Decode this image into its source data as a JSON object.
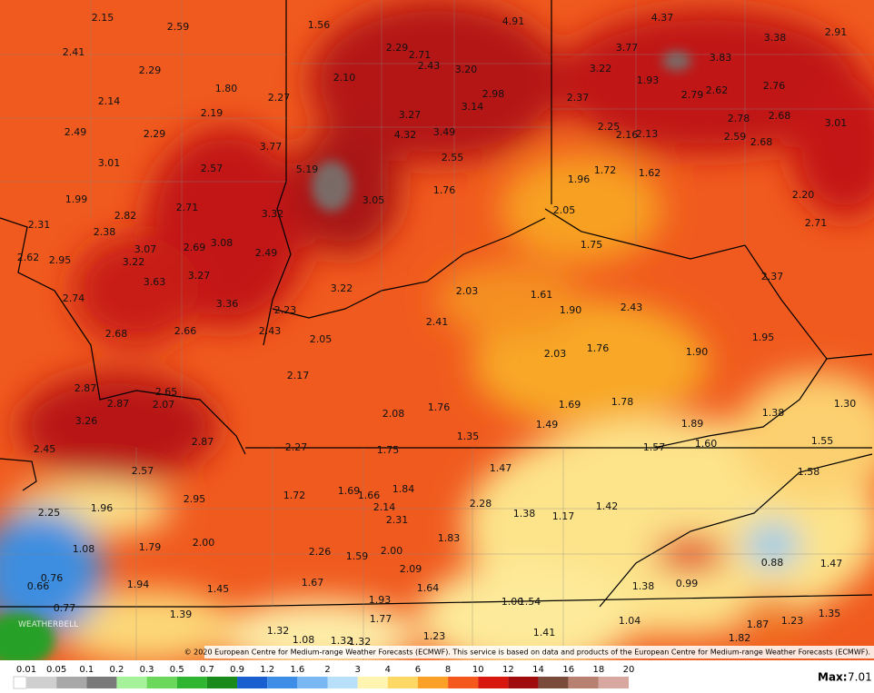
{
  "map": {
    "values": [
      "2.15",
      "2.59",
      "1.56",
      "4.91",
      "4.37",
      "3.38",
      "2.91",
      "2.41",
      "2.29",
      "2.71",
      "2.43",
      "3.20",
      "3.77",
      "3.83",
      "3.22",
      "2.29",
      "2.10",
      "1.93",
      "2.76",
      "1.80",
      "2.98",
      "2.79",
      "2.62",
      "2.14",
      "2.27",
      "2.37",
      "3.14",
      "2.19",
      "3.27",
      "2.78",
      "2.68",
      "3.01",
      "2.49",
      "2.29",
      "4.32",
      "3.49",
      "2.25",
      "2.16",
      "2.13",
      "2.59",
      "2.68",
      "3.77",
      "3.01",
      "2.57",
      "5.19",
      "2.55",
      "1.72",
      "1.62",
      "1.96",
      "1.76",
      "3.05",
      "1.99",
      "2.20",
      "2.71",
      "3.32",
      "2.05",
      "2.82",
      "2.31",
      "2.71",
      "2.38",
      "1.75",
      "3.07",
      "2.69",
      "3.08",
      "2.49",
      "2.62",
      "2.95",
      "3.22",
      "2.37",
      "3.27",
      "3.63",
      "3.22",
      "2.03",
      "1.61",
      "2.74",
      "3.36",
      "1.90",
      "2.43",
      "2.23",
      "2.41",
      "2.68",
      "2.66",
      "2.43",
      "2.05",
      "1.95",
      "1.76",
      "1.90",
      "2.03",
      "2.17",
      "2.87",
      "2.65",
      "2.87",
      "2.07",
      "1.69",
      "1.78",
      "1.30",
      "1.76",
      "2.08",
      "1.38",
      "3.26",
      "1.49",
      "1.89",
      "1.35",
      "2.87",
      "2.27",
      "1.75",
      "1.57",
      "1.60",
      "1.55",
      "2.45",
      "1.47",
      "2.57",
      "1.58",
      "1.72",
      "1.69",
      "1.66",
      "1.84",
      "2.95",
      "2.28",
      "2.14",
      "1.42",
      "1.96",
      "1.38",
      "1.17",
      "2.25",
      "2.31",
      "1.83",
      "2.00",
      "1.79",
      "1.08",
      "2.26",
      "2.00",
      "1.59",
      "0.88",
      "1.47",
      "2.09",
      "0.76",
      "1.94",
      "1.67",
      "1.38",
      "0.99",
      "0.66",
      "1.45",
      "1.64",
      "1.93",
      "1.00",
      "1.54",
      "0.77",
      "1.39",
      "1.04",
      "1.23",
      "1.35",
      "1.77",
      "1.87",
      "1.32",
      "1.41",
      "1.23",
      "1.08",
      "1.32",
      "1.32",
      "1.82"
    ],
    "copyright": "© 2020 European Centre for Medium-range Weather Forecasts (ECMWF). This service is based on data and products of the European Centre for Medium-range Weather Forecasts (ECMWF).",
    "logo": "WEATHERBELL"
  },
  "legend": {
    "ticks": [
      "0.01",
      "0.05",
      "0.1",
      "0.2",
      "0.3",
      "0.5",
      "0.7",
      "0.9",
      "1.2",
      "1.6",
      "2",
      "3",
      "4",
      "6",
      "8",
      "10",
      "12",
      "14",
      "16",
      "18",
      "20"
    ],
    "max_label": "Max:",
    "max_value": "7.01"
  }
}
